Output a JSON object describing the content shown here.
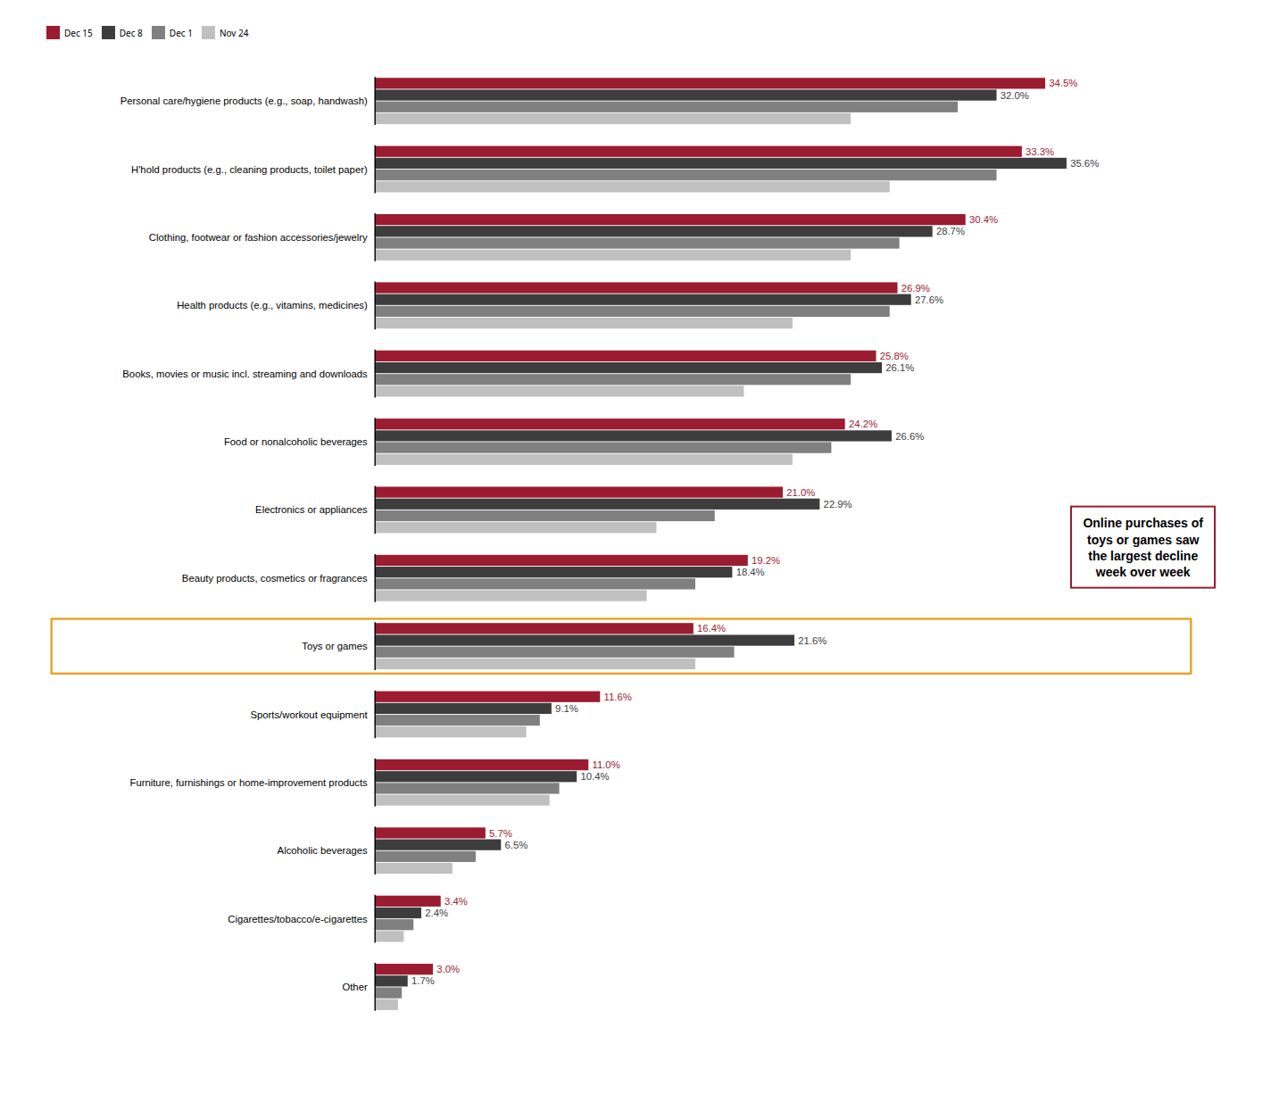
{
  "chart_data": {
    "type": "bar",
    "orientation": "horizontal",
    "categories": [
      "Personal care/hygiene products (e.g., soap, handwash)",
      "H'hold products (e.g., cleaning products, toilet paper)",
      "Clothing, footwear or fashion accessories/jewelry",
      "Health products (e.g., vitamins, medicines)",
      "Books, movies or music incl. streaming and downloads",
      "Food or nonalcoholic beverages",
      "Electronics or appliances",
      "Beauty products, cosmetics or fragrances",
      "Toys or games",
      "Sports/workout equipment",
      "Furniture, furnishings or home-improvement products",
      "Alcoholic beverages",
      "Cigarettes/tobacco/e-cigarettes",
      "Other"
    ],
    "series": [
      {
        "name": "Dec 15",
        "color": "#9B1B30",
        "data_labels": true,
        "values": [
          34.5,
          33.3,
          30.4,
          26.9,
          25.8,
          24.2,
          21.0,
          19.2,
          16.4,
          11.6,
          11.0,
          5.7,
          3.4,
          3.0
        ],
        "value_labels": [
          "34.5%",
          "33.3%",
          "30.4%",
          "26.9%",
          "25.8%",
          "24.2%",
          "21.0%",
          "19.2%",
          "16.4%",
          "11.6%",
          "11.0%",
          "5.7%",
          "3.4%",
          "3.0%"
        ]
      },
      {
        "name": "Dec 8",
        "color": "#3D3D3D",
        "data_labels": true,
        "values": [
          32.0,
          35.6,
          28.7,
          27.6,
          26.1,
          26.6,
          22.9,
          18.4,
          21.6,
          9.1,
          10.4,
          6.5,
          2.4,
          1.7
        ],
        "value_labels": [
          "32.0%",
          "35.6%",
          "28.7%",
          "27.6%",
          "26.1%",
          "26.6%",
          "22.9%",
          "18.4%",
          "21.6%",
          "9.1%",
          "10.4%",
          "6.5%",
          "2.4%",
          "1.7%"
        ]
      },
      {
        "name": "Dec 1",
        "color": "#808080",
        "values": [
          30.0,
          32.0,
          27.0,
          26.5,
          24.5,
          23.5,
          17.5,
          16.5,
          18.5,
          8.5,
          9.5,
          5.2,
          2.0,
          1.4
        ]
      },
      {
        "name": "Nov 24",
        "color": "#C0C0C0",
        "values": [
          24.5,
          26.5,
          24.5,
          21.5,
          19.0,
          21.5,
          14.5,
          14.0,
          16.5,
          7.8,
          9.0,
          4.0,
          1.5,
          1.2
        ]
      }
    ],
    "xlim": [
      0,
      42
    ],
    "tick_labels": "y",
    "grid": false,
    "legend": "top",
    "annotations": [
      {
        "text": "Online purchases of\ntoys or games saw\nthe largest decline\nweek over week",
        "color": "#9B1B30"
      }
    ],
    "highlight": {
      "category": "Toys or games",
      "color": "#E8A020"
    }
  }
}
